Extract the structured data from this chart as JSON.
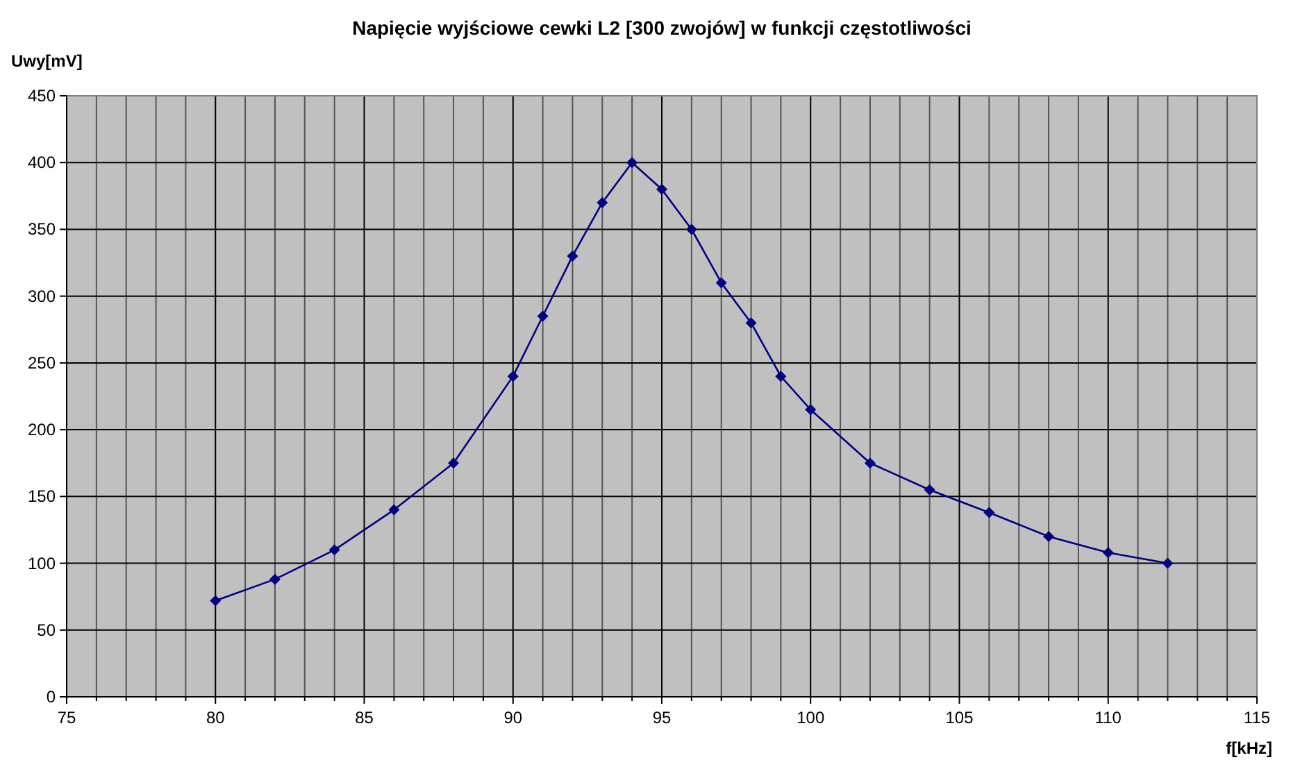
{
  "chart_data": {
    "type": "line",
    "title": "Napięcie wyjściowe cewki L2 [300 zwojów] w funkcji częstotliwości",
    "xlabel": "f[kHz]",
    "ylabel": "Uwy[mV]",
    "x": [
      80,
      82,
      84,
      86,
      88,
      90,
      91,
      92,
      93,
      94,
      95,
      96,
      97,
      98,
      99,
      100,
      102,
      104,
      106,
      108,
      110,
      112
    ],
    "series": [
      {
        "color": "#000080",
        "values": [
          72,
          88,
          110,
          140,
          175,
          240,
          285,
          330,
          370,
          400,
          380,
          350,
          310,
          280,
          240,
          215,
          175,
          155,
          138,
          120,
          108,
          100
        ]
      }
    ],
    "xlim": [
      75,
      115
    ],
    "xticks": [
      75,
      {
        "value": 76,
        "label": null
      },
      {
        "value": 77,
        "label": null
      },
      {
        "value": 78,
        "label": null
      },
      {
        "value": 79,
        "label": null
      },
      80,
      {
        "value": 81,
        "label": null
      },
      {
        "value": 82,
        "label": null
      },
      {
        "value": 83,
        "label": null
      },
      {
        "value": 84,
        "label": null
      },
      85,
      {
        "value": 86,
        "label": null
      },
      {
        "value": 87,
        "label": null
      },
      {
        "value": 88,
        "label": null
      },
      {
        "value": 89,
        "label": null
      },
      90,
      {
        "value": 91,
        "label": null
      },
      {
        "value": 92,
        "label": null
      },
      {
        "value": 93,
        "label": null
      },
      {
        "value": 94,
        "label": null
      },
      95,
      {
        "value": 96,
        "label": null
      },
      {
        "value": 97,
        "label": null
      },
      {
        "value": 98,
        "label": null
      },
      {
        "value": 99,
        "label": null
      },
      100,
      {
        "value": 101,
        "label": null
      },
      {
        "value": 102,
        "label": null
      },
      {
        "value": 103,
        "label": null
      },
      {
        "value": 104,
        "label": null
      },
      105,
      {
        "value": 106,
        "label": null
      },
      {
        "value": 107,
        "label": null
      },
      {
        "value": 108,
        "label": null
      },
      {
        "value": 109,
        "label": null
      },
      110,
      {
        "value": 111,
        "label": null
      },
      {
        "value": 112,
        "label": null
      },
      {
        "value": 113,
        "label": null
      },
      {
        "value": 114,
        "label": null
      },
      115
    ],
    "ylim": [
      0,
      450
    ],
    "yticks": [
      0,
      50,
      100,
      150,
      200,
      250,
      300,
      350,
      400,
      450
    ],
    "grid": true,
    "marker": "diamond",
    "line_style": "solid"
  }
}
